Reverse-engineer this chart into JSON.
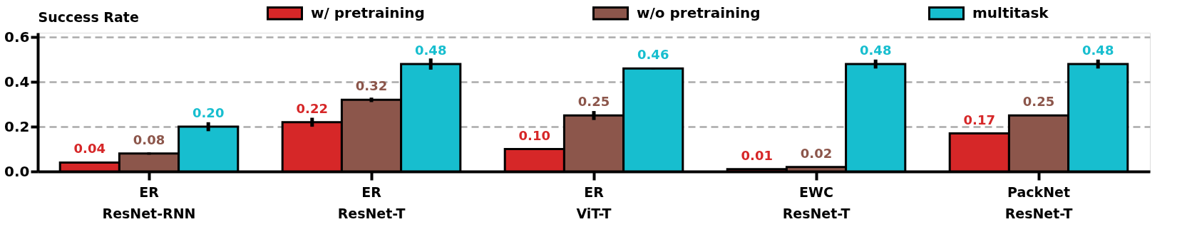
{
  "chart_data": {
    "type": "bar",
    "ylabel": "Success Rate",
    "categories": [
      "ER\nResNet-RNN",
      "ER\nResNet-T",
      "ER\nViT-T",
      "EWC\nResNet-T",
      "PackNet\nResNet-T"
    ],
    "series": [
      {
        "name": "w/ pretraining",
        "color": "#d62728",
        "values": [
          0.04,
          0.22,
          0.1,
          0.01,
          0.17
        ],
        "value_labels": [
          "0.04",
          "0.22",
          "0.10",
          "0.01",
          "0.17"
        ],
        "errors": [
          0.003,
          0.02,
          null,
          null,
          null
        ]
      },
      {
        "name": "w/o pretraining",
        "color": "#8c564b",
        "values": [
          0.08,
          0.32,
          0.25,
          0.02,
          0.25
        ],
        "value_labels": [
          "0.08",
          "0.32",
          "0.25",
          "0.02",
          "0.25"
        ],
        "errors": [
          0.005,
          0.01,
          0.02,
          null,
          null
        ]
      },
      {
        "name": "multitask",
        "color": "#17becf",
        "values": [
          0.2,
          0.48,
          0.46,
          0.48,
          0.48
        ],
        "value_labels": [
          "0.20",
          "0.48",
          "0.46",
          "0.48",
          "0.48"
        ],
        "errors": [
          0.02,
          0.025,
          0.003,
          0.02,
          0.02
        ]
      }
    ],
    "ylim": [
      0,
      0.62
    ],
    "yticks": [
      {
        "value": 0,
        "label": "0.0"
      },
      {
        "value": 0.2,
        "label": "0.2"
      },
      {
        "value": 0.4,
        "label": "0.4"
      },
      {
        "value": 0.6,
        "label": "0.6"
      }
    ],
    "grid": "y",
    "legend": "top"
  }
}
